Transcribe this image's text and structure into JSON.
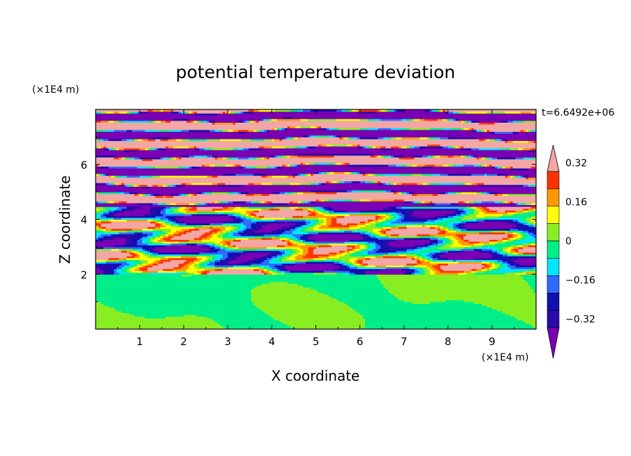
{
  "chart_data": {
    "type": "heatmap",
    "title": "potential temperature deviation",
    "xlabel": "X coordinate",
    "ylabel": "Z coordinate",
    "x_unit": "(×1E4 m)",
    "y_unit": "(×1E4 m)",
    "time_label": "t=6.6492e+06",
    "xlim": [
      0,
      10
    ],
    "ylim": [
      0,
      8
    ],
    "x_ticks": [
      "1",
      "2",
      "3",
      "4",
      "5",
      "6",
      "7",
      "8",
      "9"
    ],
    "y_ticks": [
      "2",
      "4",
      "6"
    ],
    "colorbar": {
      "levels": [
        -0.4,
        -0.32,
        -0.24,
        -0.16,
        -0.08,
        0,
        0.08,
        0.16,
        0.24,
        0.32,
        0.4
      ],
      "tick_labels": [
        "-0.32",
        "-0.16",
        "0",
        "0.16",
        "0.32"
      ],
      "tick_values": [
        -0.32,
        -0.16,
        0,
        0.16,
        0.32
      ],
      "colors": [
        "#7a00b4",
        "#2a0aa8",
        "#1010b0",
        "#2f6aff",
        "#00e5ff",
        "#00ee88",
        "#88ee22",
        "#ffff00",
        "#ff9900",
        "#ff3300",
        "#f2a6a6"
      ],
      "extend": "both"
    },
    "field_description_by_height": [
      {
        "z_range": [
          0,
          2
        ],
        "dominant_values": [
          0,
          0.08
        ]
      },
      {
        "z_range": [
          2,
          4.5
        ],
        "dominant_values": [
          -0.32,
          -0.16,
          0,
          0.16,
          0.32
        ]
      },
      {
        "z_range": [
          4.5,
          8
        ],
        "dominant_values": [
          -0.4,
          0.4
        ]
      }
    ]
  }
}
